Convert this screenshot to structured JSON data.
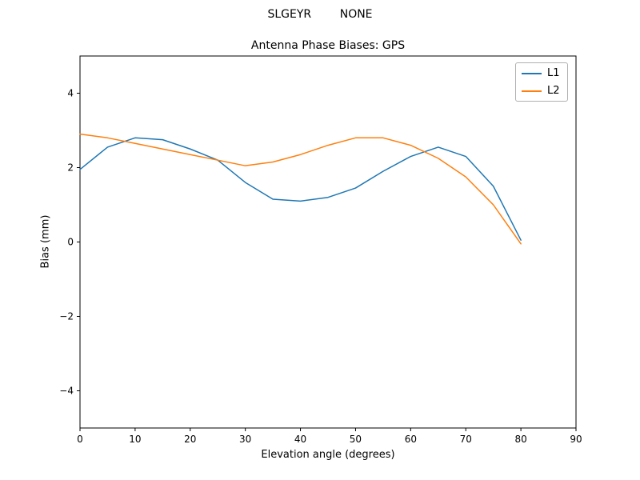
{
  "chart_data": {
    "type": "line",
    "suptitle": "SLGEYR        NONE",
    "title": "Antenna Phase Biases: GPS",
    "xlabel": "Elevation angle (degrees)",
    "ylabel": "Bias (mm)",
    "xlim": [
      0,
      90
    ],
    "ylim": [
      -5,
      5
    ],
    "xticks": [
      0,
      10,
      20,
      30,
      40,
      50,
      60,
      70,
      80,
      90
    ],
    "yticks": [
      -4,
      -2,
      0,
      2,
      4
    ],
    "grid": false,
    "legend_position": "upper right",
    "x": [
      0,
      5,
      10,
      15,
      20,
      25,
      30,
      35,
      40,
      45,
      50,
      55,
      60,
      65,
      70,
      75,
      80
    ],
    "series": [
      {
        "name": "L1",
        "color": "#1f77b4",
        "values": [
          1.95,
          2.55,
          2.8,
          2.75,
          2.5,
          2.2,
          1.6,
          1.15,
          1.1,
          1.2,
          1.45,
          1.9,
          2.3,
          2.55,
          2.3,
          1.5,
          0.05
        ]
      },
      {
        "name": "L2",
        "color": "#ff7f0e",
        "values": [
          2.9,
          2.8,
          2.65,
          2.5,
          2.35,
          2.2,
          2.05,
          2.15,
          2.35,
          2.6,
          2.8,
          2.8,
          2.6,
          2.25,
          1.75,
          1.0,
          -0.05
        ]
      }
    ]
  }
}
